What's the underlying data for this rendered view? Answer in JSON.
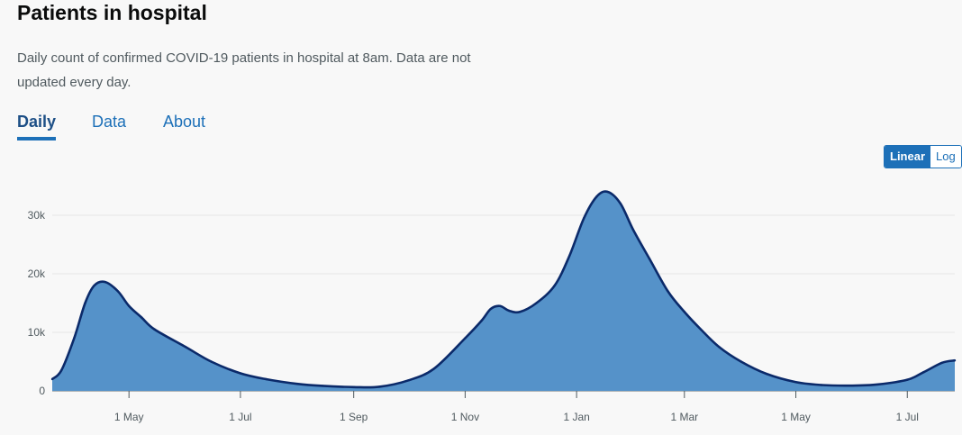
{
  "header": {
    "title": "Patients in hospital",
    "description": "Daily count of confirmed COVID-19 patients in hospital at 8am. Data are not updated every day."
  },
  "tabs": [
    {
      "label": "Daily",
      "active": true
    },
    {
      "label": "Data",
      "active": false
    },
    {
      "label": "About",
      "active": false
    }
  ],
  "scale_toggle": {
    "options": [
      "Linear",
      "Log"
    ],
    "selected": "Linear"
  },
  "colors": {
    "fill": "#5592c9",
    "line": "#0b2a6a",
    "accent": "#1d70b8"
  },
  "chart_data": {
    "type": "area",
    "title": "",
    "xlabel": "",
    "ylabel": "",
    "grid": true,
    "y_ticks": [
      0,
      10000,
      20000,
      30000
    ],
    "y_tick_labels": [
      "0",
      "10k",
      "20k",
      "30k"
    ],
    "ylim": [
      0,
      36000
    ],
    "x_range": [
      "2020-03-20",
      "2021-07-27"
    ],
    "x_ticks": [
      "2020-05-01",
      "2020-07-01",
      "2020-09-01",
      "2020-11-01",
      "2021-01-01",
      "2021-03-01",
      "2021-05-01",
      "2021-07-01"
    ],
    "x_tick_labels": [
      "1 May",
      "1 Jul",
      "1 Sep",
      "1 Nov",
      "1 Jan",
      "1 Mar",
      "1 May",
      "1 Jul"
    ],
    "series": [
      {
        "x": [
          "2020-03-20",
          "2020-03-25",
          "2020-04-01",
          "2020-04-07",
          "2020-04-12",
          "2020-04-18",
          "2020-04-25",
          "2020-05-01",
          "2020-05-08",
          "2020-05-15",
          "2020-06-01",
          "2020-06-15",
          "2020-07-01",
          "2020-07-15",
          "2020-08-01",
          "2020-08-15",
          "2020-09-01",
          "2020-09-15",
          "2020-10-01",
          "2020-10-15",
          "2020-11-01",
          "2020-11-10",
          "2020-11-15",
          "2020-11-20",
          "2020-11-25",
          "2020-12-01",
          "2020-12-10",
          "2020-12-20",
          "2020-12-28",
          "2021-01-05",
          "2021-01-12",
          "2021-01-18",
          "2021-01-25",
          "2021-02-01",
          "2021-02-10",
          "2021-02-20",
          "2021-03-01",
          "2021-03-10",
          "2021-03-20",
          "2021-04-01",
          "2021-04-15",
          "2021-05-01",
          "2021-05-15",
          "2021-06-01",
          "2021-06-15",
          "2021-07-01",
          "2021-07-10",
          "2021-07-20",
          "2021-07-27"
        ],
        "values": [
          2000,
          3500,
          9000,
          15000,
          18000,
          18600,
          17000,
          14500,
          12500,
          10500,
          7500,
          5000,
          3000,
          2000,
          1200,
          850,
          650,
          700,
          1800,
          3800,
          9000,
          12000,
          14000,
          14500,
          13700,
          13500,
          15000,
          18000,
          23000,
          29500,
          33200,
          34000,
          32000,
          27500,
          22500,
          17000,
          13500,
          10500,
          7500,
          5000,
          2900,
          1500,
          1000,
          900,
          1100,
          1900,
          3200,
          4800,
          5200
        ]
      }
    ]
  }
}
